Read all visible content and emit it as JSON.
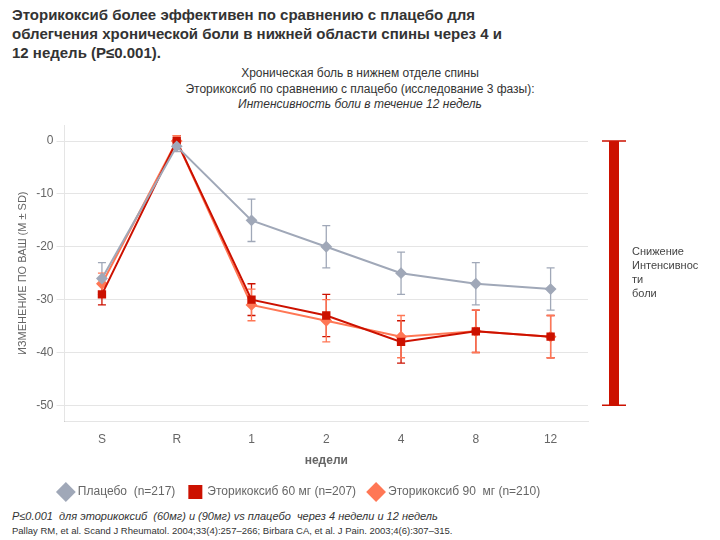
{
  "chart_data": {
    "type": "line",
    "title": "Эторикоксиб более эффективен по сравнению с плацебо для\nоблегчения хронической боли в нижней области спины через 4 и\n12 недель (P≤0.001).",
    "subtitle": [
      "Хроническая боль в нижнем отделе спины",
      "Эторикоксиб по сравнению с плацебо (исследование 3 фазы):",
      "Интенсивность боли в течение 12 недель"
    ],
    "xlabel": "недели",
    "ylabel": "ИЗМЕНЕНИЕ ПО ВАШ (М ± SD)",
    "categories": [
      "S",
      "R",
      "1",
      "2",
      "4",
      "8",
      "12"
    ],
    "series": [
      {
        "name": "Плацебо  (n=217)",
        "color": "#a0a8b8",
        "marker": "diamond",
        "values": [
          -26,
          -1,
          -15,
          -20,
          -25,
          -27,
          -28
        ],
        "errors": [
          3,
          1,
          4,
          4,
          4,
          4,
          4
        ]
      },
      {
        "name": "Эторикоксиб 60 мг (n=207)",
        "color": "#cc1100",
        "marker": "square",
        "values": [
          -29,
          0,
          -30,
          -33,
          -38,
          -36,
          -37
        ],
        "errors": [
          2,
          1,
          3,
          4,
          4,
          4,
          4
        ]
      },
      {
        "name": "Эторикоксиб 90  мг (n=210)",
        "color": "#ff7755",
        "marker": "diamond",
        "values": [
          -27,
          0,
          -31,
          -34,
          -37,
          -36,
          -37
        ],
        "errors": [
          2,
          1,
          3,
          4,
          4,
          4,
          4
        ]
      }
    ],
    "ylim": [
      -53,
      3
    ],
    "yticks": [
      0,
      -10,
      -20,
      -30,
      -40,
      -50
    ],
    "grid": "y",
    "legend": "bottom",
    "side_bar": {
      "top": 0,
      "bottom": -50,
      "label": "Снижение\nИнтенсивнос\nти\nболи",
      "color": "#cc1100"
    },
    "footnotes": [
      "P≤0.001  для эторикоксиб  (60мг) и (90мг) vs плацебо  через 4 недели и 12 недель",
      "Pallay RM, et al. Scand J Rheumatol. 2004;33(4):257–266; Birbara CA, et al. J Pain. 2003;4(6):307–315."
    ]
  }
}
